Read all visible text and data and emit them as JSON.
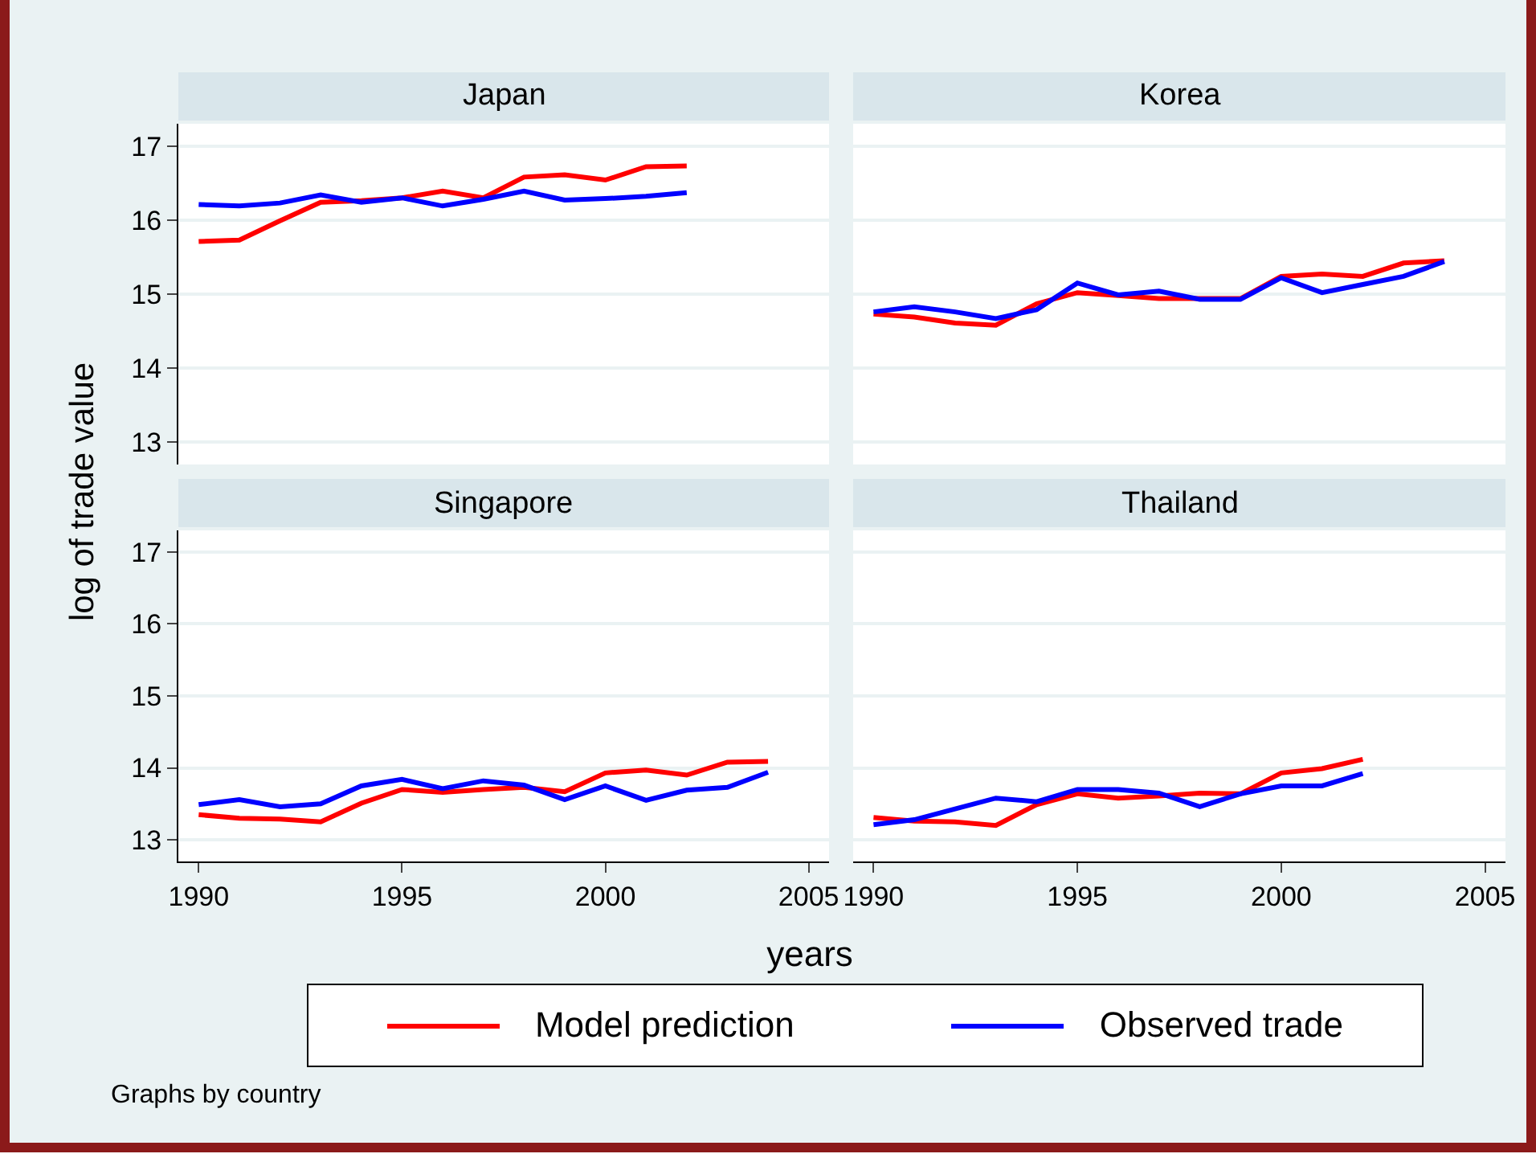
{
  "chart_data": [
    {
      "type": "line",
      "title": "Japan",
      "ylabel": "log of trade value",
      "legend": "bottom",
      "grid": "y",
      "tick_labels": "y",
      "x": [
        1990,
        1991,
        1992,
        1993,
        1994,
        1995,
        1996,
        1997,
        1998,
        1999,
        2000,
        2001,
        2002
      ],
      "xlim": [
        1989.5,
        2005.5
      ],
      "ylim": [
        12.7,
        17.3
      ],
      "yticks": [
        13,
        14,
        15,
        16,
        17
      ],
      "series": [
        {
          "name": "Model prediction",
          "color": "#ff0000",
          "values": [
            15.71,
            15.73,
            15.99,
            16.24,
            16.26,
            16.3,
            16.39,
            16.3,
            16.58,
            16.61,
            16.54,
            16.72,
            16.73
          ]
        },
        {
          "name": "Observed trade",
          "color": "#0000ff",
          "values": [
            16.21,
            16.19,
            16.23,
            16.34,
            16.24,
            16.3,
            16.19,
            16.28,
            16.39,
            16.27,
            16.29,
            16.32,
            16.37
          ]
        }
      ]
    },
    {
      "type": "line",
      "title": "Korea",
      "grid": "y",
      "tick_labels": false,
      "x": [
        1990,
        1991,
        1992,
        1993,
        1994,
        1995,
        1996,
        1997,
        1998,
        1999,
        2000,
        2001,
        2002,
        2003,
        2004
      ],
      "xlim": [
        1989.5,
        2005.5
      ],
      "ylim": [
        12.7,
        17.3
      ],
      "yticks": [
        13,
        14,
        15,
        16,
        17
      ],
      "series": [
        {
          "color": "#ff0000",
          "values": [
            14.73,
            14.69,
            14.61,
            14.58,
            14.87,
            15.02,
            14.98,
            14.94,
            14.94,
            14.94,
            15.24,
            15.27,
            15.24,
            15.42,
            15.45
          ]
        },
        {
          "color": "#0000ff",
          "values": [
            14.76,
            14.83,
            14.76,
            14.67,
            14.79,
            15.15,
            14.99,
            15.04,
            14.93,
            14.93,
            15.22,
            15.02,
            15.13,
            15.24,
            15.44
          ]
        }
      ]
    },
    {
      "type": "line",
      "title": "Singapore",
      "xlabel": "years",
      "annotations": [
        "Graphs by country"
      ],
      "grid": "y",
      "x": [
        1990,
        1991,
        1992,
        1993,
        1994,
        1995,
        1996,
        1997,
        1998,
        1999,
        2000,
        2001,
        2002,
        2003,
        2004
      ],
      "xlim": [
        1989.5,
        2005.5
      ],
      "xticks": [
        1990,
        1995,
        2000,
        2005
      ],
      "ylim": [
        12.7,
        17.3
      ],
      "yticks": [
        13,
        14,
        15,
        16,
        17
      ],
      "series": [
        {
          "color": "#ff0000",
          "values": [
            13.35,
            13.3,
            13.29,
            13.25,
            13.51,
            13.7,
            13.66,
            13.7,
            13.73,
            13.67,
            13.93,
            13.97,
            13.9,
            14.08,
            14.09
          ]
        },
        {
          "color": "#0000ff",
          "values": [
            13.49,
            13.56,
            13.46,
            13.5,
            13.75,
            13.84,
            13.71,
            13.82,
            13.76,
            13.56,
            13.75,
            13.55,
            13.69,
            13.73,
            13.94
          ]
        }
      ]
    },
    {
      "type": "line",
      "title": "Thailand",
      "grid": "y",
      "tick_labels": "x",
      "x": [
        1990,
        1991,
        1992,
        1993,
        1994,
        1995,
        1996,
        1997,
        1998,
        1999,
        2000,
        2001,
        2002
      ],
      "xlim": [
        1989.5,
        2005.5
      ],
      "xticks": [
        1990,
        1995,
        2000,
        2005
      ],
      "ylim": [
        12.7,
        17.3
      ],
      "yticks": [
        13,
        14,
        15,
        16,
        17
      ],
      "series": [
        {
          "color": "#ff0000",
          "values": [
            13.31,
            13.26,
            13.25,
            13.2,
            13.49,
            13.64,
            13.58,
            13.61,
            13.65,
            13.64,
            13.93,
            13.99,
            14.12
          ]
        },
        {
          "color": "#0000ff",
          "values": [
            13.21,
            13.28,
            13.43,
            13.58,
            13.53,
            13.7,
            13.7,
            13.65,
            13.46,
            13.64,
            13.75,
            13.75,
            13.92
          ]
        }
      ]
    }
  ]
}
